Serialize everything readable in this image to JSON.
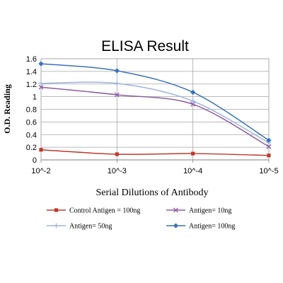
{
  "chart_data": {
    "type": "line",
    "title": "ELISA Result",
    "xlabel": "Serial Dilutions  of Antibody",
    "ylabel": "O.D. Reading",
    "categories": [
      "10^-2",
      "10^-3",
      "10^-4",
      "10^-5"
    ],
    "ylim": [
      0,
      1.6
    ],
    "yticks": [
      0,
      0.2,
      0.4,
      0.6,
      0.8,
      1,
      1.2,
      1.4,
      1.6
    ],
    "grid": true,
    "legend_position": "bottom",
    "series": [
      {
        "name": "Control Antigen = 100ng",
        "values": [
          0.16,
          0.09,
          0.1,
          0.07
        ],
        "color": "#c0392b",
        "marker": "square"
      },
      {
        "name": "Antigen= 10ng",
        "values": [
          1.15,
          1.03,
          0.88,
          0.21
        ],
        "color": "#8e5ea2",
        "marker": "x"
      },
      {
        "name": "Antigen= 50ng",
        "values": [
          1.21,
          1.21,
          0.93,
          0.27
        ],
        "color": "#9db3e0",
        "marker": "plus"
      },
      {
        "name": "Antigen= 100ng",
        "values": [
          1.52,
          1.41,
          1.07,
          0.31
        ],
        "color": "#3a72b8",
        "marker": "diamond"
      }
    ]
  }
}
